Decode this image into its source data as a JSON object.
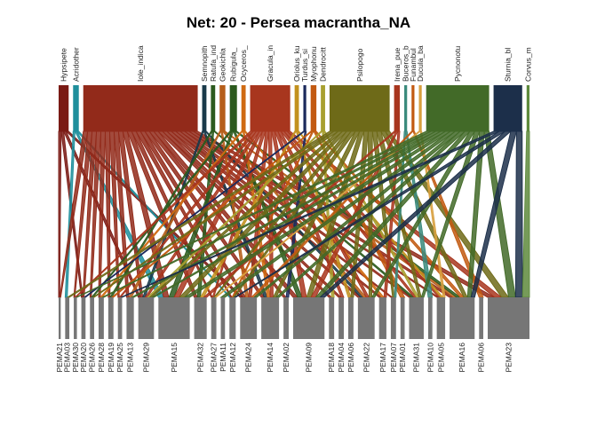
{
  "title": "Net: 20 - Persea macrantha_NA",
  "higher": [
    {
      "label": "Hypsipete",
      "color": "#7a1a14",
      "w": 7
    },
    {
      "label": "Acridother",
      "color": "#1f8f9c",
      "w": 4
    },
    {
      "label": "Iole_indica",
      "color": "#922a1a",
      "w": 80
    },
    {
      "label": "Semnopith",
      "color": "#1a3a4a",
      "w": 3
    },
    {
      "label": "Ratufa_ind",
      "color": "#2c5a1e",
      "w": 3
    },
    {
      "label": "Geokichla",
      "color": "#b65e1a",
      "w": 4
    },
    {
      "label": "Rubigula_",
      "color": "#2c5a1e",
      "w": 5
    },
    {
      "label": "Ocyceros_",
      "color": "#cf6a12",
      "w": 3
    },
    {
      "label": "Gracula_in",
      "color": "#a8361e",
      "w": 28
    },
    {
      "label": "Oriolus_ku",
      "color": "#c2911e",
      "w": 3
    },
    {
      "label": "Turdus_si",
      "color": "#1c2a5c",
      "w": 2
    },
    {
      "label": "Myophonu",
      "color": "#c25a12",
      "w": 4
    },
    {
      "label": "Dendrocitt",
      "color": "#a8a030",
      "w": 3
    },
    {
      "label": "Psilopogo",
      "color": "#6e6a18",
      "w": 42
    },
    {
      "label": "Irena_pue",
      "color": "#a8361e",
      "w": 4
    },
    {
      "label": "Buceros_b",
      "color": "#3a8a7c",
      "w": 2
    },
    {
      "label": "Funambul",
      "color": "#c25a12",
      "w": 2
    },
    {
      "label": "Ducula_ba",
      "color": "#d8a040",
      "w": 2
    },
    {
      "label": "Pycnonotu",
      "color": "#426a28",
      "w": 44
    },
    {
      "label": "Sturnia_bl",
      "color": "#1c2f4a",
      "w": 20
    },
    {
      "label": "Corvus_m",
      "color": "#5e8a3c",
      "w": 2
    }
  ],
  "lower": [
    {
      "label": "PEMA21",
      "w": 2
    },
    {
      "label": "PEMA03",
      "w": 4
    },
    {
      "label": "PEMA30",
      "w": 3
    },
    {
      "label": "PEMA20",
      "w": 4
    },
    {
      "label": "PEMA26",
      "w": 4
    },
    {
      "label": "PEMA28",
      "w": 5
    },
    {
      "label": "PEMA19",
      "w": 5
    },
    {
      "label": "PEMA25",
      "w": 4
    },
    {
      "label": "PEMA13",
      "w": 7
    },
    {
      "label": "PEMA29",
      "w": 15
    },
    {
      "label": "PEMA15",
      "w": 30
    },
    {
      "label": "PEMA32",
      "w": 12
    },
    {
      "label": "PEMA27",
      "w": 5
    },
    {
      "label": "PEMA11",
      "w": 4
    },
    {
      "label": "PEMA12",
      "w": 6
    },
    {
      "label": "PEMA24",
      "w": 16
    },
    {
      "label": "PEMA14",
      "w": 17
    },
    {
      "label": "PEMA02",
      "w": 5
    },
    {
      "label": "PEMA09",
      "w": 30
    },
    {
      "label": "PEMA18",
      "w": 5
    },
    {
      "label": "PEMA04",
      "w": 5
    },
    {
      "label": "PEMA06",
      "w": 5
    },
    {
      "label": "PEMA22",
      "w": 16
    },
    {
      "label": "PEMA17",
      "w": 7
    },
    {
      "label": "PEMA07",
      "w": 5
    },
    {
      "label": "PEMA01",
      "w": 4
    },
    {
      "label": "PEMA31",
      "w": 14
    },
    {
      "label": "PEMA10",
      "w": 4
    },
    {
      "label": "PEMA05",
      "w": 8
    },
    {
      "label": "PEMA16",
      "w": 24
    },
    {
      "label": "PEMA06",
      "w": 4
    },
    {
      "label": "PEMA23",
      "w": 40
    }
  ],
  "links": [
    [
      0,
      0
    ],
    [
      0,
      3
    ],
    [
      0,
      9
    ],
    [
      0,
      15
    ],
    [
      1,
      1
    ],
    [
      1,
      10
    ],
    [
      1,
      14
    ],
    [
      2,
      0
    ],
    [
      2,
      2
    ],
    [
      2,
      3
    ],
    [
      2,
      4
    ],
    [
      2,
      5
    ],
    [
      2,
      6
    ],
    [
      2,
      7
    ],
    [
      2,
      8
    ],
    [
      2,
      9
    ],
    [
      2,
      10
    ],
    [
      2,
      11
    ],
    [
      2,
      12
    ],
    [
      2,
      14
    ],
    [
      2,
      15
    ],
    [
      2,
      16
    ],
    [
      2,
      17
    ],
    [
      2,
      18
    ],
    [
      2,
      19
    ],
    [
      2,
      20
    ],
    [
      2,
      22
    ],
    [
      2,
      23
    ],
    [
      2,
      24
    ],
    [
      2,
      26
    ],
    [
      2,
      28
    ],
    [
      2,
      29
    ],
    [
      2,
      31
    ],
    [
      3,
      9
    ],
    [
      3,
      16
    ],
    [
      3,
      22
    ],
    [
      4,
      6
    ],
    [
      4,
      11
    ],
    [
      4,
      26
    ],
    [
      5,
      8
    ],
    [
      5,
      15
    ],
    [
      5,
      22
    ],
    [
      5,
      29
    ],
    [
      6,
      4
    ],
    [
      6,
      10
    ],
    [
      6,
      18
    ],
    [
      6,
      29
    ],
    [
      7,
      5
    ],
    [
      7,
      16
    ],
    [
      7,
      23
    ],
    [
      8,
      2
    ],
    [
      8,
      7
    ],
    [
      8,
      9
    ],
    [
      8,
      10
    ],
    [
      8,
      12
    ],
    [
      8,
      15
    ],
    [
      8,
      16
    ],
    [
      8,
      18
    ],
    [
      8,
      20
    ],
    [
      8,
      22
    ],
    [
      8,
      26
    ],
    [
      8,
      28
    ],
    [
      8,
      31
    ],
    [
      9,
      11
    ],
    [
      9,
      21
    ],
    [
      9,
      28
    ],
    [
      10,
      3
    ],
    [
      10,
      17
    ],
    [
      11,
      6
    ],
    [
      11,
      14
    ],
    [
      11,
      25
    ],
    [
      11,
      29
    ],
    [
      12,
      9
    ],
    [
      12,
      19
    ],
    [
      12,
      26
    ],
    [
      13,
      1
    ],
    [
      13,
      4
    ],
    [
      13,
      9
    ],
    [
      13,
      10
    ],
    [
      13,
      12
    ],
    [
      13,
      14
    ],
    [
      13,
      16
    ],
    [
      13,
      18
    ],
    [
      13,
      21
    ],
    [
      13,
      22
    ],
    [
      13,
      24
    ],
    [
      13,
      26
    ],
    [
      13,
      29
    ],
    [
      13,
      31
    ],
    [
      14,
      11
    ],
    [
      14,
      18
    ],
    [
      14,
      23
    ],
    [
      15,
      24
    ],
    [
      15,
      27
    ],
    [
      16,
      15
    ],
    [
      16,
      30
    ],
    [
      17,
      12
    ],
    [
      17,
      28
    ],
    [
      18,
      2
    ],
    [
      18,
      5
    ],
    [
      18,
      8
    ],
    [
      18,
      9
    ],
    [
      18,
      10
    ],
    [
      18,
      13
    ],
    [
      18,
      15
    ],
    [
      18,
      16
    ],
    [
      18,
      18
    ],
    [
      18,
      22
    ],
    [
      18,
      26
    ],
    [
      18,
      29
    ],
    [
      18,
      31
    ],
    [
      19,
      7
    ],
    [
      19,
      14
    ],
    [
      19,
      18
    ],
    [
      19,
      29
    ],
    [
      19,
      31
    ],
    [
      20,
      31
    ]
  ]
}
